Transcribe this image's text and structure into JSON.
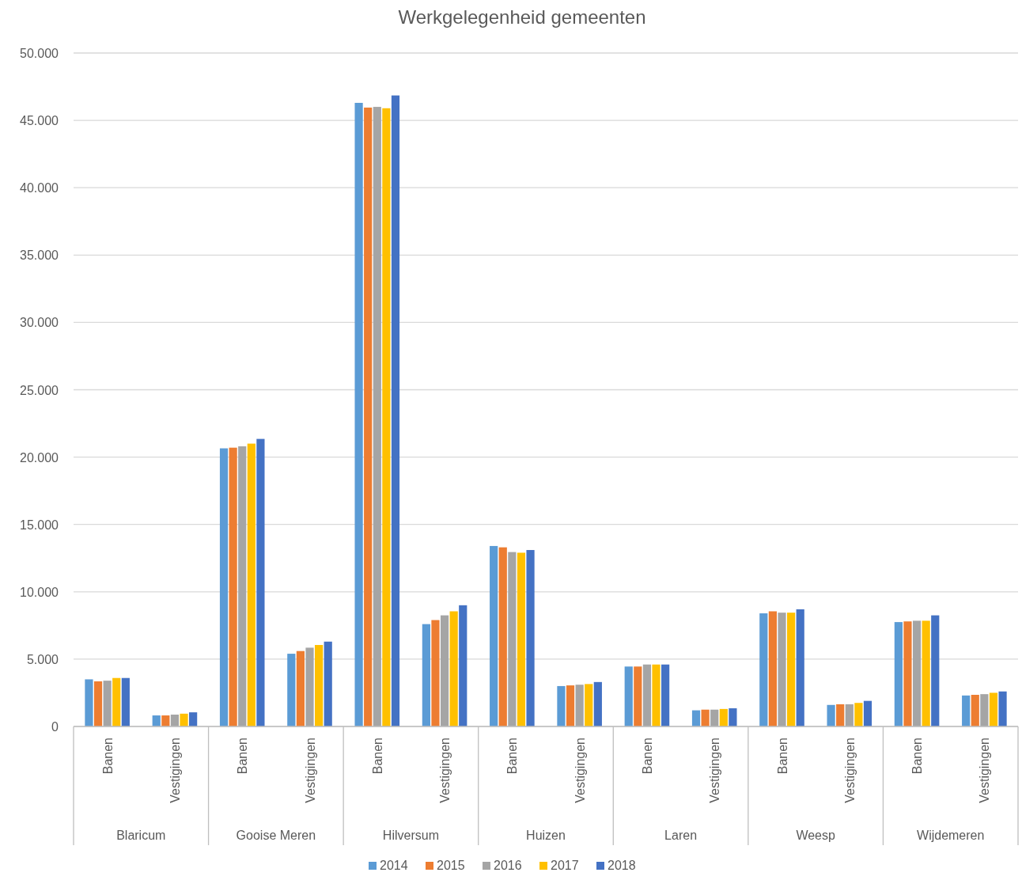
{
  "chart_data": {
    "type": "bar",
    "title": "Werkgelegenheid gemeenten",
    "categories": [
      "Banen",
      "Vestigingen",
      "Banen",
      "Vestigingen",
      "Banen",
      "Vestigingen",
      "Banen",
      "Vestigingen",
      "Banen",
      "Vestigingen",
      "Banen",
      "Vestigingen",
      "Banen",
      "Vestigingen"
    ],
    "annotations": [
      "Blaricum",
      "Gooise Meren",
      "Hilversum",
      "Huizen",
      "Laren",
      "Weesp",
      "Wijdemeren"
    ],
    "series": [
      {
        "name": "2014",
        "color": "#5b9bd5",
        "values": [
          3500,
          820,
          20650,
          5400,
          46300,
          7600,
          13400,
          3000,
          4450,
          1200,
          8400,
          1600,
          7750,
          2300
        ]
      },
      {
        "name": "2015",
        "color": "#ed7d31",
        "values": [
          3350,
          820,
          20700,
          5600,
          45950,
          7900,
          13300,
          3050,
          4450,
          1250,
          8550,
          1650,
          7800,
          2350
        ]
      },
      {
        "name": "2016",
        "color": "#a5a5a5",
        "values": [
          3400,
          880,
          20800,
          5850,
          46000,
          8250,
          12950,
          3100,
          4600,
          1250,
          8450,
          1650,
          7850,
          2400
        ]
      },
      {
        "name": "2017",
        "color": "#ffc000",
        "values": [
          3600,
          950,
          21000,
          6050,
          45900,
          8550,
          12900,
          3150,
          4600,
          1300,
          8450,
          1750,
          7850,
          2500
        ]
      },
      {
        "name": "2018",
        "color": "#4472c4",
        "values": [
          3600,
          1050,
          21350,
          6300,
          46850,
          9000,
          13100,
          3300,
          4600,
          1350,
          8700,
          1900,
          8250,
          2600
        ]
      }
    ],
    "ylim": [
      0,
      50000
    ],
    "yticks": [
      {
        "value": 0,
        "label": "0"
      },
      {
        "value": 5000,
        "label": "5.000"
      },
      {
        "value": 10000,
        "label": "10.000"
      },
      {
        "value": 15000,
        "label": "15.000"
      },
      {
        "value": 20000,
        "label": "20.000"
      },
      {
        "value": 25000,
        "label": "25.000"
      },
      {
        "value": 30000,
        "label": "30.000"
      },
      {
        "value": 35000,
        "label": "35.000"
      },
      {
        "value": 40000,
        "label": "40.000"
      },
      {
        "value": 45000,
        "label": "45.000"
      },
      {
        "value": 50000,
        "label": "50.000"
      }
    ],
    "grid": "y",
    "legend": "bottom"
  }
}
